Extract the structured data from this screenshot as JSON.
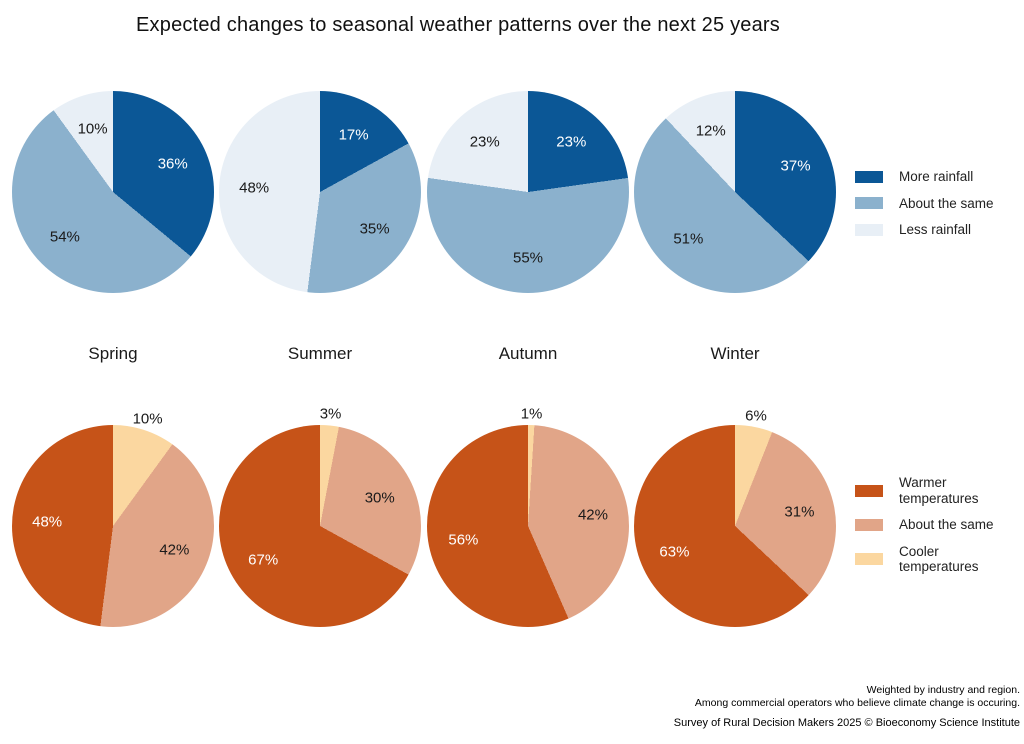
{
  "title": "Expected changes to seasonal weather patterns over the next 25 years",
  "chart_data": [
    {
      "type": "pie",
      "name": "rainfall",
      "direction": "clockwise",
      "start_angle": "top",
      "legend_position": "right",
      "categories": [
        {
          "label": "More rainfall",
          "color": "#0b5796",
          "text_color": "#ffffff",
          "label_placement": "inside"
        },
        {
          "label": "About the same",
          "color": "#8bb1cd",
          "text_color": "#1a1a1a",
          "label_placement": "inside"
        },
        {
          "label": "Less rainfall",
          "color": "#e8eff6",
          "text_color": "#1a1a1a",
          "label_placement": "inside"
        }
      ],
      "pies": [
        {
          "season": "Spring",
          "values": [
            36,
            54,
            10
          ]
        },
        {
          "season": "Summer",
          "values": [
            17,
            35,
            48
          ]
        },
        {
          "season": "Autumn",
          "values": [
            23,
            55,
            23
          ]
        },
        {
          "season": "Winter",
          "values": [
            37,
            51,
            12
          ]
        }
      ]
    },
    {
      "type": "pie",
      "name": "temperature",
      "direction": "clockwise",
      "start_angle": "top",
      "legend_position": "right",
      "categories": [
        {
          "label": "Cooler\ntemperatures",
          "legend_order": 2,
          "color": "#fbd7a0",
          "text_color": "#1a1a1a",
          "label_placement": "outside"
        },
        {
          "label": "About the same",
          "legend_order": 1,
          "color": "#e1a588",
          "text_color": "#1a1a1a",
          "label_placement": "inside"
        },
        {
          "label": "Warmer\ntemperatures",
          "legend_order": 0,
          "color": "#c65318",
          "text_color": "#ffffff",
          "label_placement": "inside"
        }
      ],
      "pies": [
        {
          "season": "Spring",
          "values": [
            10,
            42,
            48
          ]
        },
        {
          "season": "Summer",
          "values": [
            3,
            30,
            67
          ]
        },
        {
          "season": "Autumn",
          "values": [
            1,
            42,
            56
          ]
        },
        {
          "season": "Winter",
          "values": [
            6,
            31,
            63
          ]
        }
      ]
    }
  ],
  "footer": {
    "lines": [
      "Weighted by industry and region.",
      "Among commercial operators who believe climate change is occuring."
    ],
    "source": "Survey of Rural Decision Makers 2025 © Bioeconomy Science Institute"
  }
}
